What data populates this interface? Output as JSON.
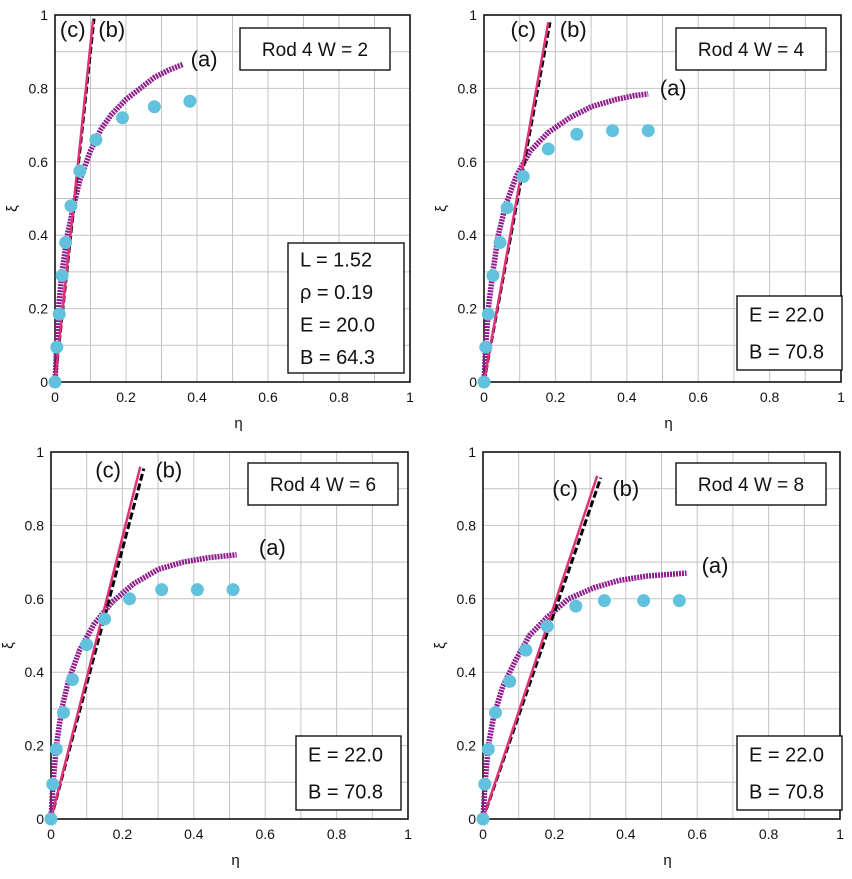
{
  "chart_data": [
    {
      "type": "scatter",
      "title": "Rod 4  W = 2",
      "xlabel": "η",
      "ylabel": "ξ",
      "xlim": [
        0,
        1
      ],
      "ylim": [
        0,
        1
      ],
      "xticks": [
        "0",
        "0.2",
        "0.4",
        "0.6",
        "0.8",
        "1"
      ],
      "yticks": [
        "0",
        "0.2",
        "0.4",
        "0.6",
        "0.8",
        "1"
      ],
      "grid": true,
      "info_lines": [
        "L  = 1.52",
        "ρ  = 0.19",
        "E  = 20.0",
        "B  = 64.3"
      ],
      "series": [
        {
          "name": "(a)",
          "style": "thick-purple-dots",
          "color": "#8E1B8C",
          "x": [
            0,
            0.005,
            0.01,
            0.02,
            0.035,
            0.05,
            0.07,
            0.1,
            0.13,
            0.16,
            0.2,
            0.24,
            0.28,
            0.32,
            0.36
          ],
          "y": [
            0,
            0.1,
            0.2,
            0.3,
            0.4,
            0.47,
            0.55,
            0.63,
            0.69,
            0.73,
            0.77,
            0.8,
            0.83,
            0.85,
            0.865
          ]
        },
        {
          "name": "(b)",
          "style": "black-dash",
          "color": "#000000",
          "x": [
            0,
            0.11
          ],
          "y": [
            0,
            0.99
          ]
        },
        {
          "name": "(c)",
          "style": "magenta-line",
          "color": "#E0307A",
          "x": [
            0,
            0.107
          ],
          "y": [
            0,
            0.985
          ]
        },
        {
          "name": "data",
          "style": "cyan-dots",
          "color": "#62C2DE",
          "x": [
            0,
            0.005,
            0.012,
            0.02,
            0.03,
            0.045,
            0.07,
            0.115,
            0.19,
            0.28,
            0.38
          ],
          "y": [
            0,
            0.095,
            0.185,
            0.29,
            0.38,
            0.48,
            0.575,
            0.66,
            0.72,
            0.75,
            0.765
          ]
        }
      ],
      "curve_labels": [
        {
          "text": "(a)",
          "x": 0.42,
          "y": 0.86
        },
        {
          "text": "(b)",
          "x": 0.16,
          "y": 0.94
        },
        {
          "text": "(c)",
          "x": 0.05,
          "y": 0.94
        }
      ]
    },
    {
      "type": "scatter",
      "title": "Rod 4  W = 4",
      "xlabel": "η",
      "ylabel": "ξ",
      "xlim": [
        0,
        1
      ],
      "ylim": [
        0,
        1
      ],
      "xticks": [
        "0",
        "0.2",
        "0.4",
        "0.6",
        "0.8",
        "1"
      ],
      "yticks": [
        "0",
        "0.2",
        "0.4",
        "0.6",
        "0.8",
        "1"
      ],
      "grid": true,
      "info_lines": [
        "E = 22.0",
        "B = 70.8"
      ],
      "series": [
        {
          "name": "(a)",
          "style": "thick-purple-dots",
          "color": "#8E1B8C",
          "x": [
            0,
            0.005,
            0.012,
            0.025,
            0.04,
            0.06,
            0.09,
            0.13,
            0.18,
            0.24,
            0.3,
            0.37,
            0.42,
            0.46
          ],
          "y": [
            0,
            0.1,
            0.2,
            0.3,
            0.4,
            0.48,
            0.56,
            0.63,
            0.68,
            0.72,
            0.75,
            0.77,
            0.78,
            0.785
          ]
        },
        {
          "name": "(b)",
          "style": "black-dash",
          "color": "#000000",
          "x": [
            0,
            0.185
          ],
          "y": [
            0,
            0.98
          ]
        },
        {
          "name": "(c)",
          "style": "magenta-line",
          "color": "#E0307A",
          "x": [
            0,
            0.18
          ],
          "y": [
            0,
            0.98
          ]
        },
        {
          "name": "data",
          "style": "cyan-dots",
          "color": "#62C2DE",
          "x": [
            0,
            0.005,
            0.012,
            0.025,
            0.045,
            0.065,
            0.11,
            0.18,
            0.26,
            0.36,
            0.46
          ],
          "y": [
            0,
            0.095,
            0.185,
            0.29,
            0.38,
            0.475,
            0.56,
            0.635,
            0.675,
            0.685,
            0.685
          ]
        }
      ],
      "curve_labels": [
        {
          "text": "(a)",
          "x": 0.53,
          "y": 0.78
        },
        {
          "text": "(b)",
          "x": 0.25,
          "y": 0.94
        },
        {
          "text": "(c)",
          "x": 0.11,
          "y": 0.94
        }
      ]
    },
    {
      "type": "scatter",
      "title": "Rod 4  W = 6",
      "xlabel": "η",
      "ylabel": "ξ",
      "xlim": [
        0,
        1
      ],
      "ylim": [
        0,
        1
      ],
      "xticks": [
        "0",
        "0.2",
        "0.4",
        "0.6",
        "0.8",
        "1"
      ],
      "yticks": [
        "0",
        "0.2",
        "0.4",
        "0.6",
        "0.8",
        "1"
      ],
      "grid": true,
      "info_lines": [
        "E = 22.0",
        "B = 70.8"
      ],
      "series": [
        {
          "name": "(a)",
          "style": "thick-purple-dots",
          "color": "#8E1B8C",
          "x": [
            0,
            0.006,
            0.015,
            0.03,
            0.05,
            0.08,
            0.12,
            0.17,
            0.23,
            0.3,
            0.37,
            0.44,
            0.52
          ],
          "y": [
            0,
            0.1,
            0.2,
            0.3,
            0.38,
            0.46,
            0.53,
            0.59,
            0.64,
            0.68,
            0.7,
            0.712,
            0.72
          ]
        },
        {
          "name": "(b)",
          "style": "black-dash",
          "color": "#000000",
          "x": [
            0,
            0.26
          ],
          "y": [
            0,
            0.955
          ]
        },
        {
          "name": "(c)",
          "style": "magenta-line",
          "color": "#E0307A",
          "x": [
            0,
            0.25
          ],
          "y": [
            0,
            0.96
          ]
        },
        {
          "name": "data",
          "style": "cyan-dots",
          "color": "#62C2DE",
          "x": [
            0,
            0.005,
            0.015,
            0.035,
            0.06,
            0.1,
            0.15,
            0.22,
            0.31,
            0.41,
            0.51
          ],
          "y": [
            0,
            0.095,
            0.19,
            0.29,
            0.38,
            0.475,
            0.545,
            0.6,
            0.625,
            0.625,
            0.625
          ]
        }
      ],
      "curve_labels": [
        {
          "text": "(a)",
          "x": 0.62,
          "y": 0.72
        },
        {
          "text": "(b)",
          "x": 0.33,
          "y": 0.93
        },
        {
          "text": "(c)",
          "x": 0.16,
          "y": 0.93
        }
      ]
    },
    {
      "type": "scatter",
      "title": "Rod 4  W = 8",
      "xlabel": "η",
      "ylabel": "ξ",
      "xlim": [
        0,
        1
      ],
      "ylim": [
        0,
        1
      ],
      "xticks": [
        "0",
        "0.2",
        "0.4",
        "0.6",
        "0.8",
        "1"
      ],
      "yticks": [
        "0",
        "0.2",
        "0.4",
        "0.6",
        "0.8",
        "1"
      ],
      "grid": true,
      "info_lines": [
        "E = 22.0",
        "B = 70.8"
      ],
      "series": [
        {
          "name": "(a)",
          "style": "thick-purple-dots",
          "color": "#8E1B8C",
          "x": [
            0,
            0.006,
            0.015,
            0.03,
            0.055,
            0.09,
            0.13,
            0.18,
            0.24,
            0.31,
            0.38,
            0.46,
            0.57
          ],
          "y": [
            0,
            0.1,
            0.2,
            0.28,
            0.36,
            0.43,
            0.5,
            0.55,
            0.6,
            0.63,
            0.65,
            0.662,
            0.67
          ]
        },
        {
          "name": "(b)",
          "style": "black-dash",
          "color": "#000000",
          "x": [
            0,
            0.33
          ],
          "y": [
            0,
            0.93
          ]
        },
        {
          "name": "(c)",
          "style": "magenta-line",
          "color": "#E0307A",
          "x": [
            0,
            0.32
          ],
          "y": [
            0,
            0.935
          ]
        },
        {
          "name": "data",
          "style": "cyan-dots",
          "color": "#62C2DE",
          "x": [
            0,
            0.005,
            0.015,
            0.035,
            0.075,
            0.12,
            0.18,
            0.26,
            0.34,
            0.45,
            0.55
          ],
          "y": [
            0,
            0.095,
            0.19,
            0.29,
            0.375,
            0.46,
            0.525,
            0.58,
            0.595,
            0.595,
            0.595
          ]
        }
      ],
      "curve_labels": [
        {
          "text": "(a)",
          "x": 0.65,
          "y": 0.67
        },
        {
          "text": "(b)",
          "x": 0.4,
          "y": 0.88
        },
        {
          "text": "(c)",
          "x": 0.23,
          "y": 0.88
        }
      ]
    }
  ]
}
